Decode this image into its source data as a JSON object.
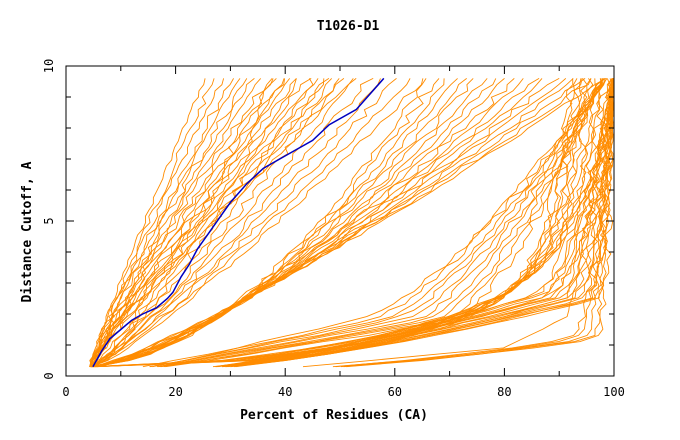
{
  "chart_data": {
    "type": "line",
    "title": "T1026-D1",
    "xlabel": "Percent of Residues (CA)",
    "ylabel": "Distance Cutoff, A",
    "xlim": [
      0,
      100
    ],
    "ylim": [
      0,
      10
    ],
    "x_ticks": [
      "0",
      "20",
      "40",
      "60",
      "80",
      "100"
    ],
    "y_ticks": [
      "0",
      "5",
      "10"
    ],
    "grid": false,
    "colors": {
      "highlight": "#0000c0",
      "others": "#ff8c00"
    },
    "highlight_series": {
      "x": [
        4.9,
        6.5,
        8.0,
        10.0,
        12.0,
        14.0,
        16.5,
        18.5,
        19.5,
        21.0,
        22.5,
        24.0,
        26.0,
        28.0,
        30.0,
        33.0,
        36.0,
        40.0,
        45.0,
        48.0,
        53.0,
        58.0
      ],
      "y": [
        0.3,
        0.8,
        1.2,
        1.5,
        1.8,
        2.0,
        2.2,
        2.5,
        2.7,
        3.2,
        3.6,
        4.1,
        4.6,
        5.1,
        5.6,
        6.2,
        6.7,
        7.1,
        7.6,
        8.1,
        8.6,
        9.6
      ]
    },
    "background_series": [
      {
        "shape": 1,
        "r": 0.1,
        "j": 0.1
      },
      {
        "shape": 1,
        "r": 0.15,
        "j": 0.2
      },
      {
        "shape": 1,
        "r": 0.2,
        "j": 0.15
      },
      {
        "shape": 1,
        "r": 0.24,
        "j": 0.25
      },
      {
        "shape": 1,
        "r": 0.28,
        "j": 0.1
      },
      {
        "shape": 1,
        "r": 0.32,
        "j": 0.3
      },
      {
        "shape": 1,
        "r": 0.36,
        "j": 0.2
      },
      {
        "shape": 1,
        "r": 0.4,
        "j": 0.15
      },
      {
        "shape": 1,
        "r": 0.44,
        "j": 0.25
      },
      {
        "shape": 1,
        "r": 0.48,
        "j": 0.2
      },
      {
        "shape": 1,
        "r": 0.52,
        "j": 0.3
      },
      {
        "shape": 1,
        "r": 0.56,
        "j": 0.1
      },
      {
        "shape": 1,
        "r": 0.6,
        "j": 0.2
      },
      {
        "shape": 1,
        "r": 0.65,
        "j": 0.25
      },
      {
        "shape": 1,
        "r": 0.7,
        "j": 0.15
      },
      {
        "shape": 1,
        "r": 0.75,
        "j": 0.2
      },
      {
        "shape": 1,
        "r": 0.8,
        "j": 0.3
      },
      {
        "shape": 1,
        "r": 0.85,
        "j": 0.2
      },
      {
        "shape": 1,
        "r": 0.9,
        "j": 0.15
      },
      {
        "shape": 2,
        "r": 0.05,
        "j": 0.2
      },
      {
        "shape": 2,
        "r": 0.12,
        "j": 0.25
      },
      {
        "shape": 2,
        "r": 0.2,
        "j": 0.15
      },
      {
        "shape": 2,
        "r": 0.28,
        "j": 0.3
      },
      {
        "shape": 2,
        "r": 0.36,
        "j": 0.2
      },
      {
        "shape": 2,
        "r": 0.44,
        "j": 0.25
      },
      {
        "shape": 2,
        "r": 0.52,
        "j": 0.15
      },
      {
        "shape": 2,
        "r": 0.6,
        "j": 0.3
      },
      {
        "shape": 2,
        "r": 0.68,
        "j": 0.2
      },
      {
        "shape": 2,
        "r": 0.76,
        "j": 0.25
      },
      {
        "shape": 2,
        "r": 0.84,
        "j": 0.15
      },
      {
        "shape": 2,
        "r": 0.92,
        "j": 0.2
      },
      {
        "shape": 3,
        "r": 0.05,
        "j": 0.2
      },
      {
        "shape": 3,
        "r": 0.1,
        "j": 0.3
      },
      {
        "shape": 3,
        "r": 0.15,
        "j": 0.15
      },
      {
        "shape": 3,
        "r": 0.2,
        "j": 0.25
      },
      {
        "shape": 3,
        "r": 0.25,
        "j": 0.2
      },
      {
        "shape": 3,
        "r": 0.3,
        "j": 0.3
      },
      {
        "shape": 3,
        "r": 0.35,
        "j": 0.15
      },
      {
        "shape": 3,
        "r": 0.4,
        "j": 0.25
      },
      {
        "shape": 3,
        "r": 0.45,
        "j": 0.2
      },
      {
        "shape": 3,
        "r": 0.5,
        "j": 0.3
      },
      {
        "shape": 3,
        "r": 0.55,
        "j": 0.15
      },
      {
        "shape": 3,
        "r": 0.6,
        "j": 0.25
      },
      {
        "shape": 3,
        "r": 0.65,
        "j": 0.2
      },
      {
        "shape": 3,
        "r": 0.7,
        "j": 0.3
      },
      {
        "shape": 3,
        "r": 0.75,
        "j": 0.15
      },
      {
        "shape": 3,
        "r": 0.8,
        "j": 0.25
      },
      {
        "shape": 3,
        "r": 0.85,
        "j": 0.2
      },
      {
        "shape": 3,
        "r": 0.9,
        "j": 0.3
      },
      {
        "shape": 3,
        "r": 0.95,
        "j": 0.15
      },
      {
        "shape": 4,
        "r": 0.05,
        "j": 0.2
      },
      {
        "shape": 4,
        "r": 0.15,
        "j": 0.3
      },
      {
        "shape": 4,
        "r": 0.25,
        "j": 0.15
      },
      {
        "shape": 4,
        "r": 0.35,
        "j": 0.25
      },
      {
        "shape": 4,
        "r": 0.45,
        "j": 0.2
      },
      {
        "shape": 4,
        "r": 0.55,
        "j": 0.3
      },
      {
        "shape": 4,
        "r": 0.65,
        "j": 0.15
      },
      {
        "shape": 4,
        "r": 0.75,
        "j": 0.25
      },
      {
        "shape": 4,
        "r": 0.85,
        "j": 0.2
      },
      {
        "shape": 4,
        "r": 0.95,
        "j": 0.3
      },
      {
        "shape": 5,
        "r": 0.05,
        "j": 0.25
      },
      {
        "shape": 5,
        "r": 0.12,
        "j": 0.2
      },
      {
        "shape": 5,
        "r": 0.2,
        "j": 0.3
      },
      {
        "shape": 5,
        "r": 0.28,
        "j": 0.15
      },
      {
        "shape": 5,
        "r": 0.36,
        "j": 0.25
      },
      {
        "shape": 5,
        "r": 0.44,
        "j": 0.2
      },
      {
        "shape": 5,
        "r": 0.52,
        "j": 0.3
      },
      {
        "shape": 5,
        "r": 0.6,
        "j": 0.15
      },
      {
        "shape": 5,
        "r": 0.68,
        "j": 0.25
      },
      {
        "shape": 5,
        "r": 0.76,
        "j": 0.2
      },
      {
        "shape": 5,
        "r": 0.84,
        "j": 0.3
      },
      {
        "shape": 5,
        "r": 0.92,
        "j": 0.15
      },
      {
        "shape": 6,
        "r": 0.05,
        "j": 0.3
      },
      {
        "shape": 6,
        "r": 0.11,
        "j": 0.2
      },
      {
        "shape": 6,
        "r": 0.17,
        "j": 0.25
      },
      {
        "shape": 6,
        "r": 0.23,
        "j": 0.15
      },
      {
        "shape": 6,
        "r": 0.29,
        "j": 0.3
      },
      {
        "shape": 6,
        "r": 0.35,
        "j": 0.2
      },
      {
        "shape": 6,
        "r": 0.41,
        "j": 0.25
      },
      {
        "shape": 6,
        "r": 0.47,
        "j": 0.15
      },
      {
        "shape": 6,
        "r": 0.53,
        "j": 0.3
      },
      {
        "shape": 6,
        "r": 0.59,
        "j": 0.2
      },
      {
        "shape": 6,
        "r": 0.65,
        "j": 0.25
      },
      {
        "shape": 6,
        "r": 0.71,
        "j": 0.15
      },
      {
        "shape": 6,
        "r": 0.77,
        "j": 0.3
      },
      {
        "shape": 6,
        "r": 0.83,
        "j": 0.2
      },
      {
        "shape": 6,
        "r": 0.89,
        "j": 0.25
      },
      {
        "shape": 6,
        "r": 0.95,
        "j": 0.15
      },
      {
        "shape": 7,
        "r": 0.1,
        "j": 0.2
      },
      {
        "shape": 7,
        "r": 0.3,
        "j": 0.25
      },
      {
        "shape": 7,
        "r": 0.5,
        "j": 0.15
      },
      {
        "shape": 7,
        "r": 0.7,
        "j": 0.2
      },
      {
        "shape": 7,
        "r": 0.9,
        "j": 0.25
      },
      {
        "shape": 8,
        "r": 0.5,
        "j": 0.15
      }
    ]
  }
}
